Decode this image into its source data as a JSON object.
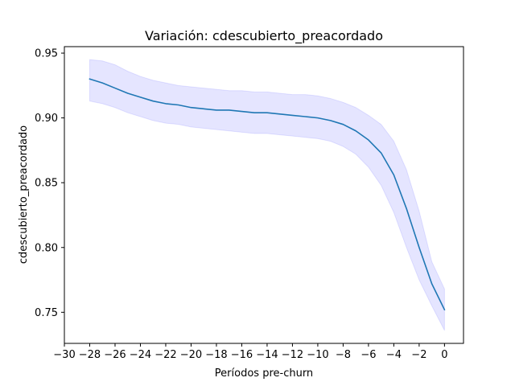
{
  "chart_data": {
    "type": "line",
    "title": "Variación: cdescubierto_preacordado",
    "xlabel": "Períodos pre-churn",
    "ylabel": "cdescubierto_preacordado",
    "xlim": [
      -30,
      1.5
    ],
    "ylim": [
      0.726,
      0.955
    ],
    "x_ticks": [
      -30,
      -28,
      -26,
      -24,
      -22,
      -20,
      -18,
      -16,
      -14,
      -12,
      -10,
      -8,
      -6,
      -4,
      -2,
      0
    ],
    "x_tick_labels": [
      "−30",
      "−28",
      "−26",
      "−24",
      "−22",
      "−20",
      "−18",
      "−16",
      "−14",
      "−12",
      "−10",
      "−8",
      "−6",
      "−4",
      "−2",
      "0"
    ],
    "y_ticks": [
      0.75,
      0.8,
      0.85,
      0.9,
      0.95
    ],
    "y_tick_labels": [
      "0.75",
      "0.80",
      "0.85",
      "0.90",
      "0.95"
    ],
    "grid": false,
    "line_color": "#1f77b4",
    "band_color": "#0000ff",
    "x": [
      -28,
      -27,
      -26,
      -25,
      -24,
      -23,
      -22,
      -21,
      -20,
      -19,
      -18,
      -17,
      -16,
      -15,
      -14,
      -13,
      -12,
      -11,
      -10,
      -9,
      -8,
      -7,
      -6,
      -5,
      -4,
      -3,
      -2,
      -1,
      0
    ],
    "series": [
      {
        "values": [
          0.93,
          0.927,
          0.923,
          0.919,
          0.916,
          0.913,
          0.911,
          0.91,
          0.908,
          0.907,
          0.906,
          0.906,
          0.905,
          0.904,
          0.904,
          0.903,
          0.902,
          0.901,
          0.9,
          0.898,
          0.895,
          0.89,
          0.883,
          0.873,
          0.856,
          0.83,
          0.8,
          0.772,
          0.752
        ],
        "lower": [
          0.913,
          0.911,
          0.908,
          0.904,
          0.901,
          0.898,
          0.896,
          0.895,
          0.893,
          0.892,
          0.891,
          0.89,
          0.889,
          0.888,
          0.888,
          0.887,
          0.886,
          0.885,
          0.884,
          0.882,
          0.878,
          0.872,
          0.862,
          0.848,
          0.827,
          0.8,
          0.775,
          0.755,
          0.736
        ],
        "upper": [
          0.945,
          0.944,
          0.941,
          0.936,
          0.932,
          0.929,
          0.927,
          0.925,
          0.924,
          0.923,
          0.922,
          0.921,
          0.921,
          0.92,
          0.92,
          0.919,
          0.918,
          0.918,
          0.917,
          0.915,
          0.912,
          0.908,
          0.902,
          0.895,
          0.882,
          0.86,
          0.828,
          0.789,
          0.768
        ]
      }
    ]
  }
}
